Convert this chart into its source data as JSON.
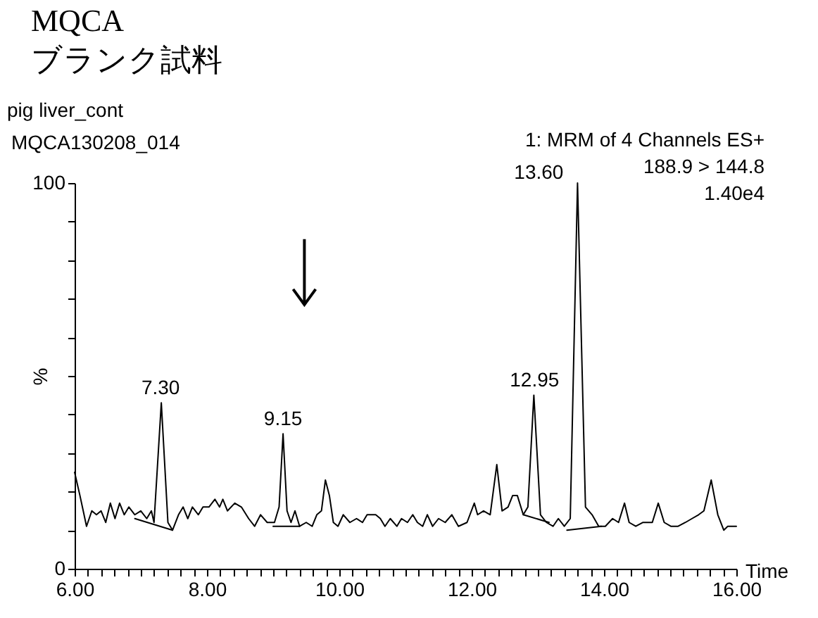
{
  "chart_data": {
    "type": "line",
    "title": "MQCA",
    "subtitle": "ブランク試料",
    "xlabel": "Time",
    "ylabel": "%",
    "xlim": [
      6,
      16
    ],
    "ylim": [
      0,
      100
    ],
    "xticks": [
      {
        "value": 6,
        "label": "6.00"
      },
      {
        "value": 6.2,
        "label": null
      },
      {
        "value": 6.4,
        "label": null
      },
      {
        "value": 6.6,
        "label": null
      },
      {
        "value": 6.8,
        "label": null
      },
      {
        "value": 7,
        "label": null
      },
      {
        "value": 7.2,
        "label": null
      },
      {
        "value": 7.4,
        "label": null
      },
      {
        "value": 7.6,
        "label": null
      },
      {
        "value": 7.8,
        "label": null
      },
      {
        "value": 8,
        "label": "8.00"
      },
      {
        "value": 8.2,
        "label": null
      },
      {
        "value": 8.4,
        "label": null
      },
      {
        "value": 8.6,
        "label": null
      },
      {
        "value": 8.8,
        "label": null
      },
      {
        "value": 9,
        "label": null
      },
      {
        "value": 9.2,
        "label": null
      },
      {
        "value": 9.4,
        "label": null
      },
      {
        "value": 9.6,
        "label": null
      },
      {
        "value": 9.8,
        "label": null
      },
      {
        "value": 10,
        "label": "10.00"
      },
      {
        "value": 10.2,
        "label": null
      },
      {
        "value": 10.4,
        "label": null
      },
      {
        "value": 10.6,
        "label": null
      },
      {
        "value": 10.8,
        "label": null
      },
      {
        "value": 11,
        "label": null
      },
      {
        "value": 11.2,
        "label": null
      },
      {
        "value": 11.4,
        "label": null
      },
      {
        "value": 11.6,
        "label": null
      },
      {
        "value": 11.8,
        "label": null
      },
      {
        "value": 12,
        "label": "12.00"
      },
      {
        "value": 12.2,
        "label": null
      },
      {
        "value": 12.4,
        "label": null
      },
      {
        "value": 12.6,
        "label": null
      },
      {
        "value": 12.8,
        "label": null
      },
      {
        "value": 13,
        "label": null
      },
      {
        "value": 13.2,
        "label": null
      },
      {
        "value": 13.4,
        "label": null
      },
      {
        "value": 13.6,
        "label": null
      },
      {
        "value": 13.8,
        "label": null
      },
      {
        "value": 14,
        "label": "14.00"
      },
      {
        "value": 14.2,
        "label": null
      },
      {
        "value": 14.4,
        "label": null
      },
      {
        "value": 14.6,
        "label": null
      },
      {
        "value": 14.8,
        "label": null
      },
      {
        "value": 15,
        "label": null
      },
      {
        "value": 15.2,
        "label": null
      },
      {
        "value": 15.4,
        "label": null
      },
      {
        "value": 15.6,
        "label": null
      },
      {
        "value": 15.8,
        "label": null
      },
      {
        "value": 16,
        "label": "16.00"
      }
    ],
    "yticks": [
      0,
      {
        "value": 10,
        "label": null
      },
      {
        "value": 20,
        "label": null
      },
      {
        "value": 30,
        "label": null
      },
      {
        "value": 40,
        "label": null
      },
      {
        "value": 50,
        "label": null
      },
      {
        "value": 60,
        "label": null
      },
      {
        "value": 70,
        "label": null
      },
      {
        "value": 80,
        "label": null
      },
      {
        "value": 90,
        "label": null
      },
      100
    ],
    "series": [
      {
        "color": "#000000",
        "x": [
          6.0,
          6.08,
          6.13,
          6.18,
          6.26,
          6.33,
          6.4,
          6.47,
          6.54,
          6.61,
          6.68,
          6.75,
          6.82,
          6.91,
          7.0,
          7.09,
          7.16,
          7.2,
          7.31,
          7.41,
          7.48,
          7.57,
          7.64,
          7.71,
          7.78,
          7.87,
          7.94,
          8.03,
          8.12,
          8.19,
          8.24,
          8.31,
          8.42,
          8.52,
          8.63,
          8.72,
          8.81,
          8.91,
          9.02,
          9.09,
          9.15,
          9.21,
          9.27,
          9.33,
          9.4,
          9.5,
          9.59,
          9.66,
          9.73,
          9.79,
          9.85,
          9.91,
          9.98,
          10.06,
          10.16,
          10.26,
          10.35,
          10.42,
          10.48,
          10.55,
          10.62,
          10.69,
          10.77,
          10.87,
          10.94,
          11.03,
          11.11,
          11.18,
          11.26,
          11.33,
          11.41,
          11.5,
          11.6,
          11.7,
          11.8,
          11.93,
          12.04,
          12.09,
          12.18,
          12.28,
          12.38,
          12.46,
          12.55,
          12.62,
          12.69,
          12.78,
          12.85,
          12.94,
          13.04,
          13.13,
          13.23,
          13.31,
          13.4,
          13.49,
          13.6,
          13.72,
          13.82,
          13.92,
          14.02,
          14.13,
          14.22,
          14.31,
          14.38,
          14.48,
          14.59,
          14.73,
          14.82,
          14.91,
          15.01,
          15.12,
          15.23,
          15.33,
          15.43,
          15.51,
          15.62,
          15.72,
          15.81,
          15.87,
          15.94,
          16.0
        ],
        "values": [
          25,
          19,
          15,
          11,
          15,
          14,
          15,
          12,
          17,
          13,
          17,
          14,
          16,
          14,
          15,
          13,
          15,
          12,
          43,
          12,
          10,
          14,
          16,
          13,
          16,
          14,
          16,
          16,
          18,
          16,
          18,
          15,
          17,
          16,
          13,
          11,
          14,
          12,
          12,
          16,
          35,
          15,
          12,
          15,
          11,
          12,
          11,
          14,
          15,
          23,
          19,
          12,
          11,
          14,
          12,
          13,
          12,
          14,
          14,
          14,
          13,
          11,
          13,
          11,
          13,
          12,
          14,
          12,
          11,
          14,
          11,
          13,
          12,
          14,
          11,
          12,
          17,
          14,
          15,
          14,
          27,
          15,
          16,
          19,
          19,
          14,
          16,
          45,
          14,
          12,
          11,
          13,
          11,
          13,
          100,
          16,
          14,
          11,
          11,
          13,
          12,
          17,
          12,
          11,
          12,
          12,
          17,
          12,
          11,
          11,
          12,
          13,
          14,
          15,
          23,
          14,
          10,
          11,
          11,
          11
        ]
      },
      {
        "color": "#000000",
        "type": "line",
        "x": [
          6.91,
          7.48
        ],
        "values": [
          13,
          10
        ]
      },
      {
        "color": "#000000",
        "type": "line",
        "x": [
          9.0,
          9.4
        ],
        "values": [
          11,
          11
        ]
      },
      {
        "color": "#000000",
        "type": "line",
        "x": [
          12.78,
          13.17
        ],
        "values": [
          14,
          12
        ]
      },
      {
        "color": "#000000",
        "type": "line",
        "x": [
          13.44,
          13.96
        ],
        "values": [
          10,
          11
        ]
      }
    ],
    "annotations": [
      "pig liver_cont",
      "MQCA130208_014",
      "1: MRM of 4 Channels ES+",
      "188.9 > 144.8",
      "1.40e4",
      {
        "text": "7.30",
        "x": 7.3,
        "y": 43
      },
      {
        "text": "9.15",
        "x": 9.15,
        "y": 35
      },
      {
        "text": "12.95",
        "x": 12.95,
        "y": 45
      },
      {
        "text": "13.60",
        "x": 13.6,
        "y": 100
      }
    ]
  }
}
